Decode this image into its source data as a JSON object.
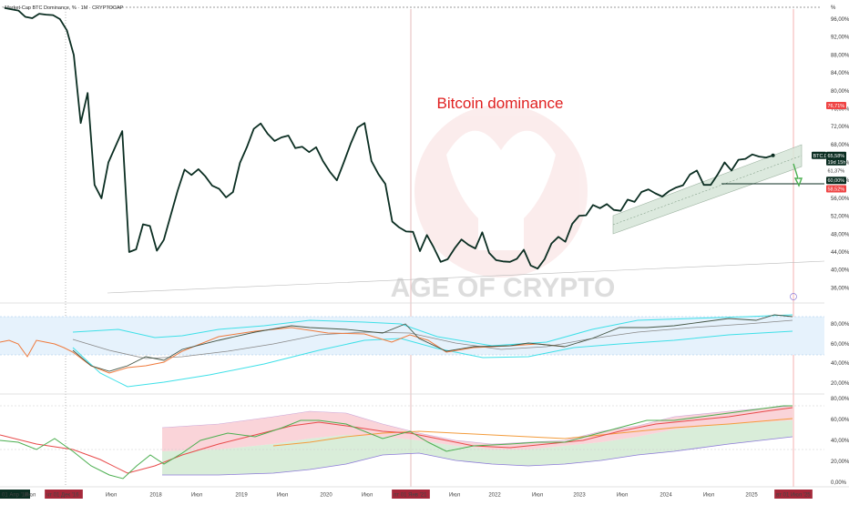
{
  "header": {
    "title": "~Market-Cap BTC Dominance, %  ·  1M  ·  CRYPTOCAP"
  },
  "annotation": {
    "main_label": "Bitcoin dominance",
    "watermark": "AGE OF CRYPTO",
    "percent_unit": "%"
  },
  "colors": {
    "price_line": "#0b2e22",
    "annotation": "#e02020",
    "channel_fill": "#d7e6d9",
    "cyan_band": "#3ee0e8",
    "orange_line": "#ef7a3c",
    "green_osc": "#4caf50",
    "red_fill": "#f9c9cf",
    "green_fill": "#cfe9cf",
    "purple_line": "#8c7bd8",
    "badge_dark": "#0b2e22",
    "badge_red": "#ef4444"
  },
  "chart_data": {
    "type": "line",
    "title": "~Market-Cap BTC Dominance, % · 1M · CRYPTOCAP",
    "ylabel": "%",
    "xlabel": "",
    "ylim": [
      34,
      100
    ],
    "y_ticks": [
      "96,00%",
      "92,00%",
      "88,00%",
      "84,00%",
      "80,00%",
      "76,00%",
      "72,00%",
      "68,00%",
      "64,00%",
      "60,00%",
      "56,00%",
      "52,00%",
      "48,00%",
      "44,00%",
      "40,00%",
      "36,00%"
    ],
    "x_ticks": [
      "01 Апр '16",
      "Июл",
      "чт 01 Дек '16",
      "Июл",
      "2018",
      "Июл",
      "2019",
      "Июл",
      "2020",
      "Июл",
      "пт 01 Янв '21",
      "Июл",
      "2022",
      "Июл",
      "2023",
      "Июл",
      "2024",
      "Июл",
      "2025",
      "вт 01 Июл '25"
    ],
    "price_badges": [
      {
        "label": "76,71%",
        "value": 76.71,
        "style": "red"
      },
      {
        "label": "BTC.D",
        "value": 65.58,
        "style": "dark"
      },
      {
        "label": "65,58%",
        "value": 65.58,
        "style": "dark"
      },
      {
        "label": "19d 15h",
        "value": 64.6,
        "style": "dark"
      },
      {
        "label": "61,37%",
        "value": 61.37,
        "style": "plain"
      },
      {
        "label": "60,00%",
        "value": 60.0,
        "style": "dark"
      },
      {
        "label": "58,52%",
        "value": 58.52,
        "style": "red"
      }
    ],
    "series": [
      {
        "name": "BTC.D",
        "x": [
          0,
          1,
          2,
          3,
          4,
          5,
          6,
          7,
          8,
          9,
          10,
          11,
          12,
          13,
          14,
          15,
          16,
          17,
          18,
          19,
          20,
          21,
          22,
          23,
          24,
          25,
          26,
          27,
          28,
          29,
          30,
          31,
          32,
          33,
          34,
          35,
          36,
          37,
          38,
          39,
          40,
          41,
          42,
          43,
          44,
          45,
          46,
          47,
          48,
          49,
          50,
          51,
          52,
          53,
          54,
          55,
          56,
          57,
          58,
          59,
          60,
          61,
          62,
          63,
          64,
          65,
          66,
          67,
          68,
          69,
          70,
          71,
          72,
          73,
          74,
          75,
          76,
          77,
          78,
          79,
          80,
          81,
          82,
          83,
          84,
          85,
          86,
          87,
          88,
          89,
          90,
          91,
          92,
          93,
          94,
          95,
          96,
          97,
          98,
          99,
          100,
          101,
          102,
          103,
          104,
          105,
          106,
          107,
          108,
          109,
          110,
          111
        ],
        "values": [
          98.5,
          98.2,
          97.9,
          96.5,
          96.2,
          97.2,
          97.0,
          96.9,
          96.0,
          93.5,
          88.0,
          72.8,
          79.5,
          59.0,
          56.0,
          64.0,
          67.5,
          71.0,
          44.0,
          44.6,
          50.2,
          49.8,
          44.3,
          46.7,
          52.2,
          57.7,
          62.4,
          61.2,
          62.5,
          60.9,
          58.8,
          58.1,
          56.2,
          57.4,
          63.9,
          67.4,
          71.5,
          72.7,
          70.4,
          68.8,
          69.6,
          70.0,
          67.2,
          67.5,
          66.3,
          67.4,
          64.3,
          61.9,
          60.0,
          64.0,
          68.2,
          71.8,
          72.8,
          64.3,
          61.4,
          59.2,
          50.8,
          49.5,
          48.6,
          48.5,
          44.2,
          47.8,
          45.0,
          41.8,
          42.4,
          44.8,
          46.8,
          45.6,
          44.8,
          48.4,
          43.8,
          42.2,
          41.9,
          41.8,
          42.5,
          44.5,
          41.0,
          40.3,
          42.4,
          45.9,
          47.4,
          46.3,
          50.3,
          52.1,
          52.2,
          54.5,
          53.8,
          54.7,
          53.4,
          53.2,
          55.7,
          55.2,
          57.4,
          58.0,
          57.1,
          56.4,
          57.6,
          58.4,
          58.9,
          61.3,
          62.2,
          59.0,
          59.0,
          61.3,
          64.0,
          62.2,
          64.6,
          64.8,
          65.8,
          65.3,
          65.1,
          65.58
        ]
      }
    ]
  }
}
